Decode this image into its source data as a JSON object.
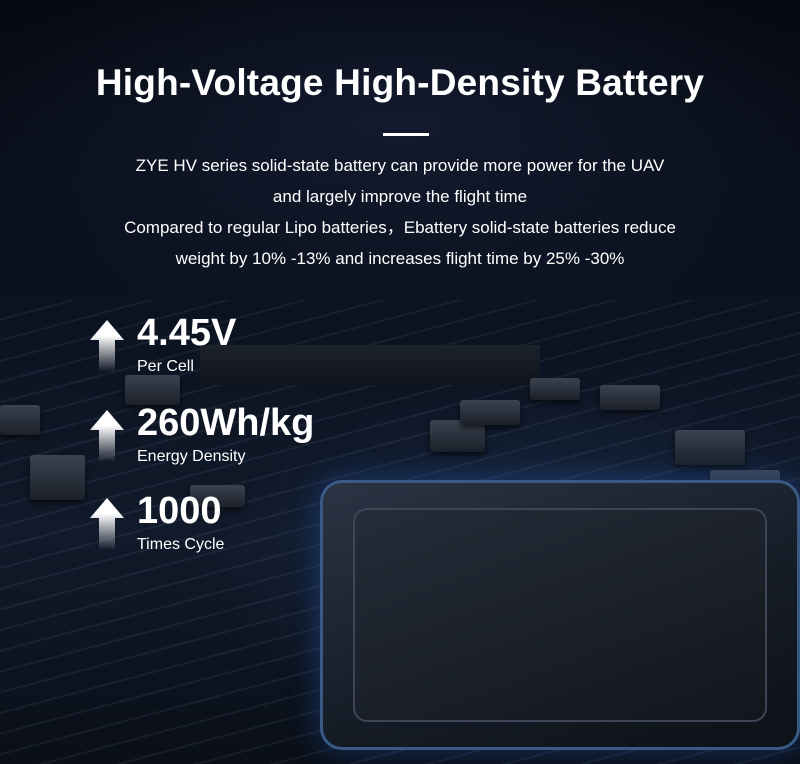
{
  "header": {
    "title": "High-Voltage High-Density Battery",
    "description_lines": [
      "ZYE HV series solid-state battery can provide more power for the UAV",
      "and largely improve the flight time",
      "Compared to regular Lipo batteries，Ebattery solid-state batteries reduce",
      "weight by 10% -13% and increases flight time by 25% -30%"
    ]
  },
  "stats": [
    {
      "value": "4.45V",
      "label": "Per Cell",
      "icon": "up-arrow-icon"
    },
    {
      "value": "260Wh/kg",
      "label": "Energy Density",
      "icon": "up-arrow-icon"
    },
    {
      "value": "1000",
      "label": "Times Cycle",
      "icon": "up-arrow-icon"
    }
  ],
  "colors": {
    "background": "#070b14",
    "text": "#ffffff",
    "chip_glow": "#3a5a86"
  }
}
